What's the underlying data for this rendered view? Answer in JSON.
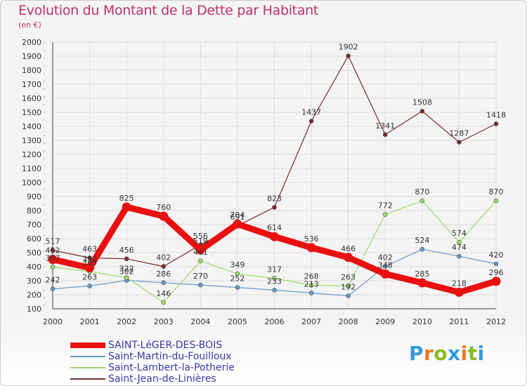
{
  "title": "Evolution du Montant de la Dette par Habitant",
  "subtitle": "(en €)",
  "chart_data": {
    "type": "line",
    "title": "Evolution du Montant de la Dette par Habitant",
    "subtitle": "(en €)",
    "x": [
      "2000",
      "2001",
      "2002",
      "2003",
      "2004",
      "2005",
      "2006",
      "2007",
      "2008",
      "2009",
      "2010",
      "2011",
      "2012"
    ],
    "ylim": [
      100,
      2000
    ],
    "yticks": [
      100,
      200,
      300,
      400,
      500,
      600,
      700,
      800,
      900,
      1000,
      1100,
      1200,
      1300,
      1400,
      1500,
      1600,
      1700,
      1800,
      1900,
      2000
    ],
    "grid": true,
    "legend_position": "bottom-left",
    "series": [
      {
        "name": "SAINT-LéGER-DES-BOIS",
        "color": "#e81010",
        "values": [
          452,
          392,
          825,
          760,
          519,
          704,
          614,
          536,
          466,
          348,
          285,
          218,
          296
        ]
      },
      {
        "name": "Saint-Martin-du-Fouilloux",
        "color": "#6699cc",
        "values": [
          242,
          263,
          302,
          286,
          270,
          252,
          233,
          213,
          192,
          402,
          524,
          474,
          420
        ]
      },
      {
        "name": "Saint-Lambert-la-Potherie",
        "color": "#99dd66",
        "values": [
          397,
          365,
          322,
          146,
          441,
          349,
          317,
          268,
          263,
          772,
          870,
          574,
          870
        ]
      },
      {
        "name": "Saint-Jean-de-Linières",
        "color": "#7a2a2a",
        "values": [
          517,
          463,
          456,
          402,
          556,
          691,
          823,
          1437,
          1902,
          1341,
          1508,
          1287,
          1418
        ]
      }
    ]
  },
  "legend": [
    {
      "label": "SAINT-LéGER-DES-BOIS",
      "color": "#e81010"
    },
    {
      "label": "Saint-Martin-du-Fouilloux",
      "color": "#6699cc"
    },
    {
      "label": "Saint-Lambert-la-Potherie",
      "color": "#99dd66"
    },
    {
      "label": "Saint-Jean-de-Linières",
      "color": "#7a2a2a"
    }
  ],
  "logo": {
    "letters": [
      "P",
      "r",
      "o",
      "x",
      "i",
      "t",
      "i"
    ],
    "colors": [
      "#3399dd",
      "#ee7722",
      "#88bb22",
      "#3399dd",
      "#ee7722",
      "#88bb22",
      "#3399dd"
    ]
  }
}
